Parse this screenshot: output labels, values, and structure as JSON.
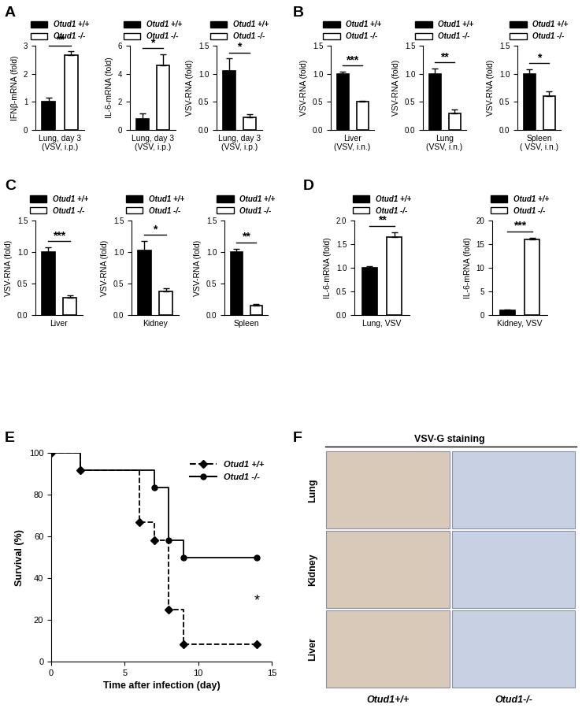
{
  "chart_data": [
    {
      "type": "bar",
      "panel": "A",
      "y_label": "IFNβ-mRNA (fold)",
      "x_label": "Lung, day 3\n(VSV, i.p.)",
      "ylim": [
        0,
        3
      ],
      "yticks": [
        0,
        1,
        2,
        3
      ],
      "legend": "above",
      "tick_labels": "y",
      "annotation": "**",
      "series": [
        {
          "name": "Otud1 +/+",
          "color": "#000000",
          "values": [
            1.0
          ],
          "errors": [
            0.15
          ]
        },
        {
          "name": "Otud1 -/-",
          "color": "#ffffff",
          "values": [
            2.65
          ],
          "errors": [
            0.15
          ]
        }
      ]
    },
    {
      "type": "bar",
      "y_label": "IL-6-mRNA (fold)",
      "x_label": "Lung, day 3\n(VSV, i.p.)",
      "ylim": [
        0,
        6
      ],
      "yticks": [
        0,
        2,
        4,
        6
      ],
      "legend": "above",
      "tick_labels": "y",
      "annotation": "*",
      "series": [
        {
          "name": "Otud1 +/+",
          "color": "#000000",
          "values": [
            0.8
          ],
          "errors": [
            0.4
          ]
        },
        {
          "name": "Otud1 -/-",
          "color": "#ffffff",
          "values": [
            4.6
          ],
          "errors": [
            0.8
          ]
        }
      ]
    },
    {
      "type": "bar",
      "y_label": "VSV-RNA (fold)",
      "x_label": "Lung, day 3\n(VSV, i.p.)",
      "ylim": [
        0.0,
        1.5
      ],
      "yticks": [
        0.0,
        0.5,
        1.0,
        1.5
      ],
      "legend": "above",
      "tick_labels": "y",
      "annotation": "*",
      "series": [
        {
          "name": "Otud1 +/+",
          "color": "#000000",
          "values": [
            1.05
          ],
          "errors": [
            0.22
          ]
        },
        {
          "name": "Otud1 -/-",
          "color": "#ffffff",
          "values": [
            0.23
          ],
          "errors": [
            0.05
          ]
        }
      ]
    },
    {
      "type": "bar",
      "panel": "B",
      "y_label": "VSV-RNA (fold)",
      "x_label": "Liver\n(VSV, i.n.)",
      "ylim": [
        0.0,
        1.5
      ],
      "yticks": [
        0.0,
        0.5,
        1.0,
        1.5
      ],
      "legend": "above",
      "tick_labels": "y",
      "annotation": "***",
      "series": [
        {
          "name": "Otud1 +/+",
          "color": "#000000",
          "values": [
            1.0
          ],
          "errors": [
            0.04
          ]
        },
        {
          "name": "Otud1 -/-",
          "color": "#ffffff",
          "values": [
            0.5
          ],
          "errors": [
            0.02
          ]
        }
      ]
    },
    {
      "type": "bar",
      "y_label": "VSV-RNA (fold)",
      "x_label": "Lung\n(VSV, i.n.)",
      "ylim": [
        0.0,
        1.5
      ],
      "yticks": [
        0.0,
        0.5,
        1.0,
        1.5
      ],
      "legend": "above",
      "tick_labels": "y",
      "annotation": "**",
      "series": [
        {
          "name": "Otud1 +/+",
          "color": "#000000",
          "values": [
            1.0
          ],
          "errors": [
            0.1
          ]
        },
        {
          "name": "Otud1 -/-",
          "color": "#ffffff",
          "values": [
            0.3
          ],
          "errors": [
            0.07
          ]
        }
      ]
    },
    {
      "type": "bar",
      "y_label": "VSV-RNA (fold)",
      "x_label": "Spleen\n( VSV, i.n.)",
      "ylim": [
        0.0,
        1.5
      ],
      "yticks": [
        0.0,
        0.5,
        1.0,
        1.5
      ],
      "legend": "above",
      "tick_labels": "y",
      "annotation": "*",
      "series": [
        {
          "name": "Otud1 +/+",
          "color": "#000000",
          "values": [
            1.0
          ],
          "errors": [
            0.08
          ]
        },
        {
          "name": "Otud1 -/-",
          "color": "#ffffff",
          "values": [
            0.6
          ],
          "errors": [
            0.08
          ]
        }
      ]
    },
    {
      "type": "bar",
      "panel": "C",
      "y_label": "VSV-RNA (fold)",
      "x_label": "Liver",
      "ylim": [
        0.0,
        1.5
      ],
      "yticks": [
        0.0,
        0.5,
        1.0,
        1.5
      ],
      "legend": "above",
      "tick_labels": "y",
      "annotation": "***",
      "series": [
        {
          "name": "Otud1 +/+",
          "color": "#000000",
          "values": [
            1.0
          ],
          "errors": [
            0.07
          ]
        },
        {
          "name": "Otud1 -/-",
          "color": "#ffffff",
          "values": [
            0.28
          ],
          "errors": [
            0.03
          ]
        }
      ]
    },
    {
      "type": "bar",
      "y_label": "VSV-RNA (fold)",
      "x_label": "Kidney",
      "ylim": [
        0.0,
        1.5
      ],
      "yticks": [
        0.0,
        0.5,
        1.0,
        1.5
      ],
      "legend": "above",
      "tick_labels": "y",
      "annotation": "*",
      "series": [
        {
          "name": "Otud1 +/+",
          "color": "#000000",
          "values": [
            1.02
          ],
          "errors": [
            0.15
          ]
        },
        {
          "name": "Otud1 -/-",
          "color": "#ffffff",
          "values": [
            0.38
          ],
          "errors": [
            0.05
          ]
        }
      ]
    },
    {
      "type": "bar",
      "y_label": "VSV-RNA (fold)",
      "x_label": "Spleen",
      "ylim": [
        0.0,
        1.5
      ],
      "yticks": [
        0.0,
        0.5,
        1.0,
        1.5
      ],
      "legend": "above",
      "tick_labels": "y",
      "annotation": "**",
      "series": [
        {
          "name": "Otud1 +/+",
          "color": "#000000",
          "values": [
            1.0
          ],
          "errors": [
            0.05
          ]
        },
        {
          "name": "Otud1 -/-",
          "color": "#ffffff",
          "values": [
            0.15
          ],
          "errors": [
            0.02
          ]
        }
      ]
    },
    {
      "type": "bar",
      "panel": "D",
      "y_label": "IL-6-mRNA (fold)",
      "x_label": "Lung, VSV",
      "ylim": [
        0.0,
        2.0
      ],
      "yticks": [
        0.0,
        0.5,
        1.0,
        1.5,
        2.0
      ],
      "legend": "above",
      "tick_labels": "y",
      "annotation": "**",
      "series": [
        {
          "name": "Otud1 +/+",
          "color": "#000000",
          "values": [
            1.0
          ],
          "errors": [
            0.04
          ]
        },
        {
          "name": "Otud1 -/-",
          "color": "#ffffff",
          "values": [
            1.65
          ],
          "errors": [
            0.1
          ]
        }
      ]
    },
    {
      "type": "bar",
      "y_label": "IL-6-mRNA (fold)",
      "x_label": "Kidney, VSV",
      "ylim": [
        0,
        20
      ],
      "yticks": [
        0,
        5,
        10,
        15,
        20
      ],
      "legend": "above",
      "tick_labels": "y",
      "annotation": "***",
      "series": [
        {
          "name": "Otud1 +/+",
          "color": "#000000",
          "values": [
            1.0
          ],
          "errors": [
            0.2
          ]
        },
        {
          "name": "Otud1 -/-",
          "color": "#ffffff",
          "values": [
            16.0
          ],
          "errors": [
            0.3
          ]
        }
      ]
    },
    {
      "type": "line",
      "panel": "E",
      "y_label": "Survival (%)",
      "x_label": "Time after infection (day)",
      "xlim": [
        0,
        15
      ],
      "xticks": [
        0,
        5,
        10,
        15
      ],
      "ylim": [
        0,
        100
      ],
      "yticks": [
        0,
        20,
        40,
        60,
        80,
        100
      ],
      "legend": "upper right",
      "annotation": "*",
      "series": [
        {
          "name": "Otud1 +/+",
          "color": "#000000",
          "line_style": "dashed",
          "marker": "diamond",
          "x": [
            0,
            2,
            6,
            7,
            8,
            9,
            14
          ],
          "values": [
            100,
            91.7,
            66.7,
            58.3,
            25,
            8.3,
            8.3
          ]
        },
        {
          "name": "Otud1 -/-",
          "color": "#000000",
          "line_style": "solid",
          "marker": "circle",
          "x": [
            0,
            2,
            7,
            8,
            9,
            14
          ],
          "values": [
            100,
            91.7,
            83.3,
            58.3,
            50,
            50
          ]
        }
      ]
    }
  ],
  "panel_F": {
    "panel": "F",
    "title": "VSV-G staining",
    "rows": [
      "Lung",
      "Kidney",
      "Liver"
    ],
    "columns": [
      "Otud1+/+",
      "Otud1-/-"
    ]
  }
}
